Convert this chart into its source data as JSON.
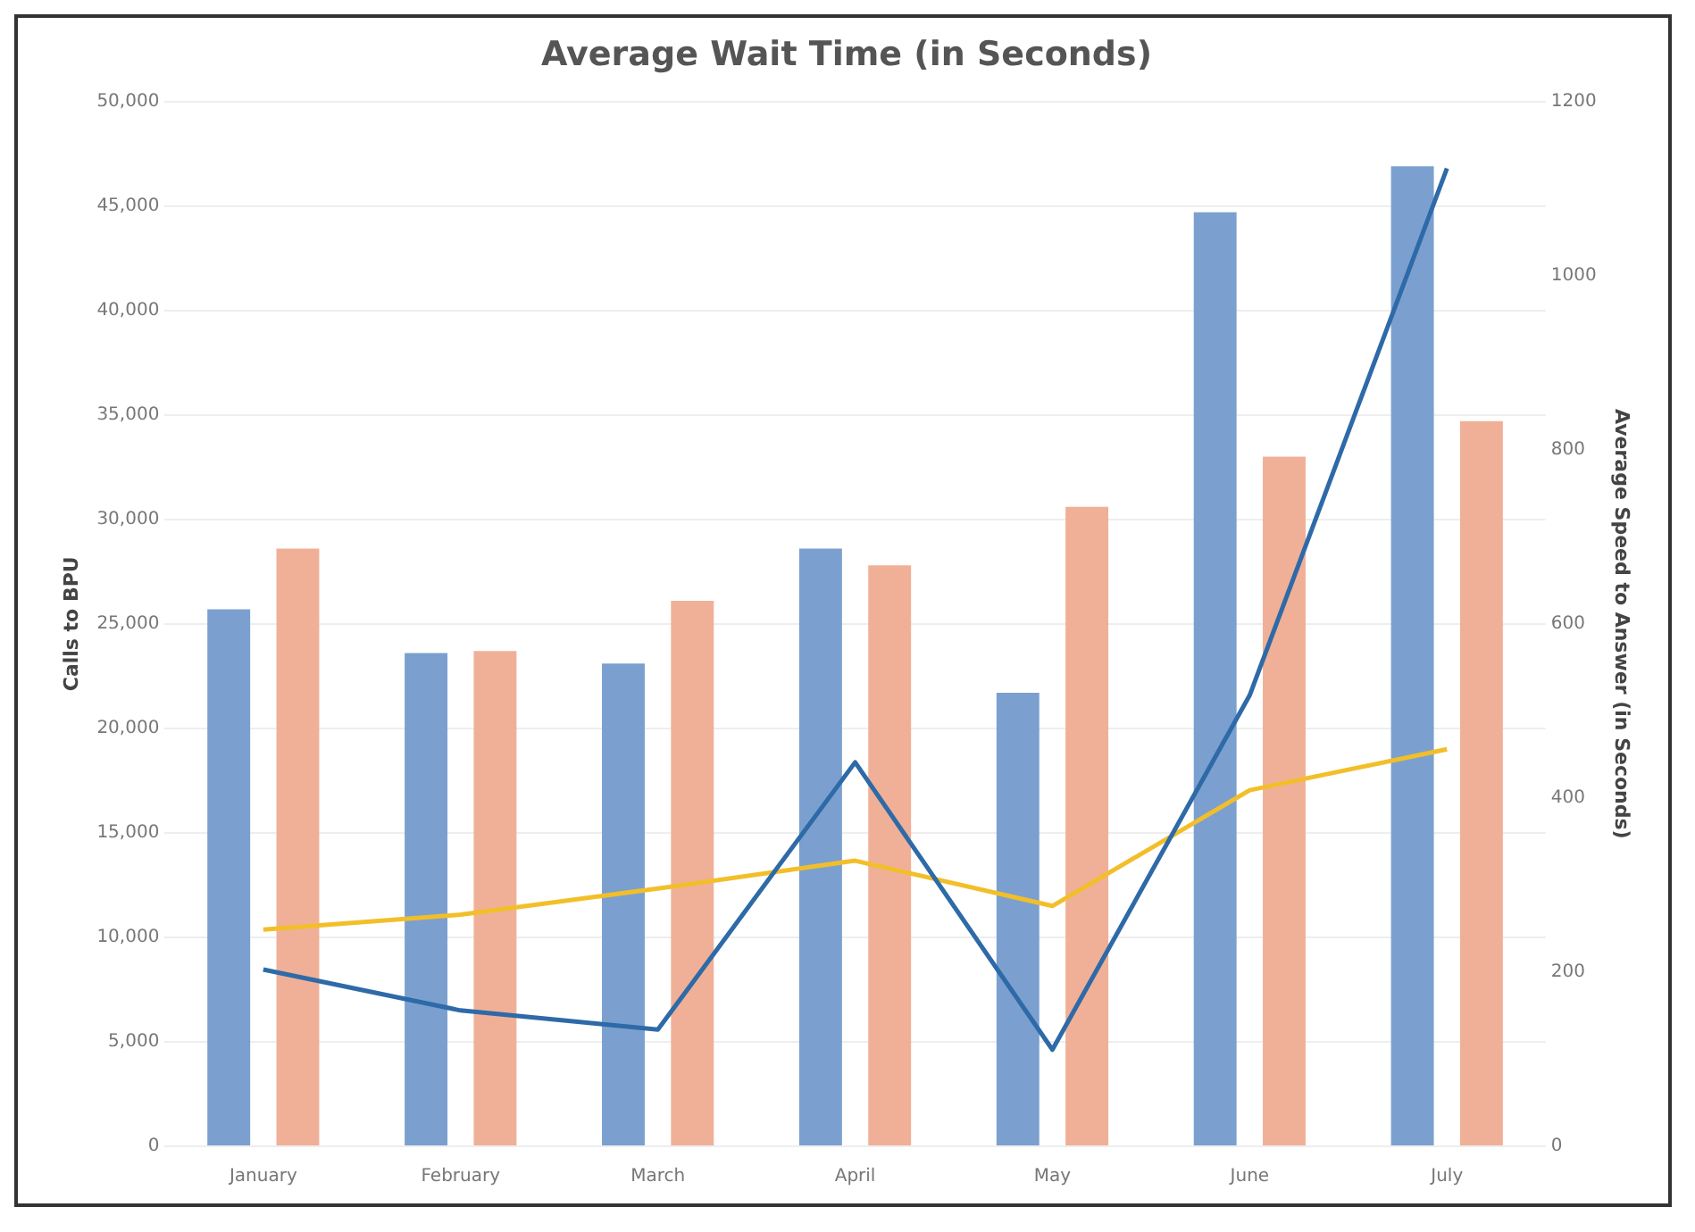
{
  "chart_data": {
    "type": "bar",
    "title": "Average Wait Time (in Seconds)",
    "ylabel": "Calls to BPU",
    "y2label": "Average Speed to Answer (in Seconds)",
    "categories": [
      "January",
      "February",
      "March",
      "April",
      "May",
      "June",
      "July"
    ],
    "series": [
      {
        "color": "#7ba0cf",
        "values": [
          25700,
          23600,
          23100,
          28600,
          21700,
          44700,
          46900
        ]
      },
      {
        "color": "#f0b097",
        "values": [
          28600,
          23700,
          26100,
          27800,
          30600,
          33000,
          34700
        ]
      },
      {
        "type": "line",
        "axis": "y2",
        "color": "#2e6aa8",
        "values": [
          203,
          156,
          134,
          441,
          111,
          518,
          1123
        ]
      },
      {
        "type": "line",
        "axis": "y2",
        "color": "#f2bf2a",
        "values": [
          249,
          266,
          296,
          328,
          276,
          409,
          456
        ]
      }
    ],
    "ylim": [
      0,
      50000
    ],
    "yticks": [
      {
        "value": 0,
        "label": "0"
      },
      {
        "value": 5000,
        "label": "5,000"
      },
      {
        "value": 10000,
        "label": "10,000"
      },
      {
        "value": 15000,
        "label": "15,000"
      },
      {
        "value": 20000,
        "label": "20,000"
      },
      {
        "value": 25000,
        "label": "25,000"
      },
      {
        "value": 30000,
        "label": "30,000"
      },
      {
        "value": 35000,
        "label": "35,000"
      },
      {
        "value": 40000,
        "label": "40,000"
      },
      {
        "value": 45000,
        "label": "45,000"
      },
      {
        "value": 50000,
        "label": "50,000"
      }
    ],
    "y2lim": [
      0,
      1200
    ],
    "y2ticks": [
      0,
      200,
      400,
      600,
      800,
      1000,
      1200
    ],
    "grid": "y",
    "legend": false,
    "marker": "none",
    "line_style": "solid"
  }
}
